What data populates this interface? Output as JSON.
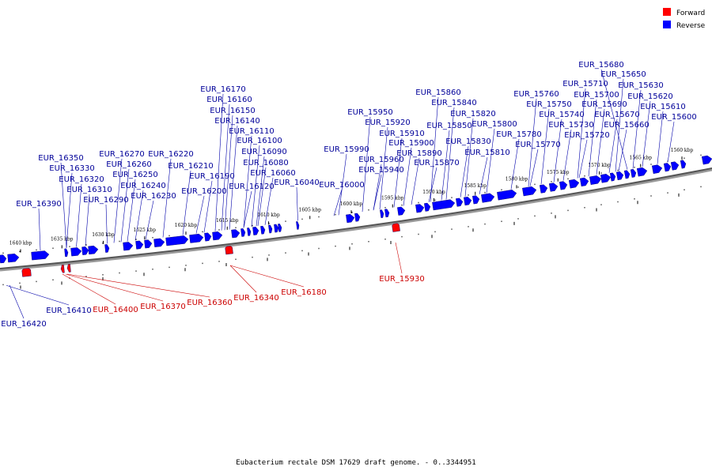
{
  "legend": {
    "items": [
      {
        "label": "Forward",
        "color": "#ff0000"
      },
      {
        "label": "Reverse",
        "color": "#0000ff"
      }
    ]
  },
  "caption": "Eubacterium rectale DSM 17629 draft genome. - 0..3344951",
  "scale_ticks": [
    {
      "label": "1640 kbp",
      "kbp": 1640
    },
    {
      "label": "1635 kbp",
      "kbp": 1635
    },
    {
      "label": "1630 kbp",
      "kbp": 1630
    },
    {
      "label": "1625 kbp",
      "kbp": 1625
    },
    {
      "label": "1620 kbp",
      "kbp": 1620
    },
    {
      "label": "1615 kbp",
      "kbp": 1615
    },
    {
      "label": "1610 kbp",
      "kbp": 1610
    },
    {
      "label": "1605 kbp",
      "kbp": 1605
    },
    {
      "label": "1600 kbp",
      "kbp": 1600
    },
    {
      "label": "1595 kbp",
      "kbp": 1595
    },
    {
      "label": "1590 kbp",
      "kbp": 1590
    },
    {
      "label": "1585 kbp",
      "kbp": 1585
    },
    {
      "label": "1580 kbp",
      "kbp": 1580
    },
    {
      "label": "1575 kbp",
      "kbp": 1575
    },
    {
      "label": "1570 kbp",
      "kbp": 1570
    },
    {
      "label": "1565 kbp",
      "kbp": 1565
    },
    {
      "label": "1560 kbp",
      "kbp": 1560
    }
  ],
  "reverse_labels": [
    "EUR_15680",
    "EUR_15650",
    "EUR_15710",
    "EUR_15630",
    "EUR_15760",
    "EUR_15700",
    "EUR_15620",
    "EUR_15860",
    "EUR_15750",
    "EUR_15690",
    "EUR_15610",
    "EUR_15840",
    "EUR_15740",
    "EUR_15670",
    "EUR_15600",
    "EUR_15950",
    "EUR_15820",
    "EUR_15730",
    "EUR_15660",
    "EUR_15920",
    "EUR_15850",
    "EUR_15800",
    "EUR_15720",
    "EUR_15910",
    "EUR_15780",
    "EUR_15900",
    "EUR_15830",
    "EUR_15770",
    "EUR_15990",
    "EUR_15890",
    "EUR_15810",
    "EUR_15960",
    "EUR_15870",
    "EUR_15940",
    "EUR_16170",
    "EUR_16160",
    "EUR_16150",
    "EUR_16140",
    "EUR_16110",
    "EUR_16100",
    "EUR_16090",
    "EUR_16080",
    "EUR_16060",
    "EUR_16040",
    "EUR_16000",
    "EUR_16120",
    "EUR_16190",
    "EUR_16200",
    "EUR_16270",
    "EUR_16220",
    "EUR_16260",
    "EUR_16210",
    "EUR_16250",
    "EUR_16240",
    "EUR_16230",
    "EUR_16350",
    "EUR_16330",
    "EUR_16320",
    "EUR_16310",
    "EUR_16290",
    "EUR_16390",
    "EUR_16410",
    "EUR_16420"
  ],
  "forward_labels": [
    "EUR_15930",
    "EUR_16180",
    "EUR_16340",
    "EUR_16360",
    "EUR_16370",
    "EUR_16400"
  ]
}
